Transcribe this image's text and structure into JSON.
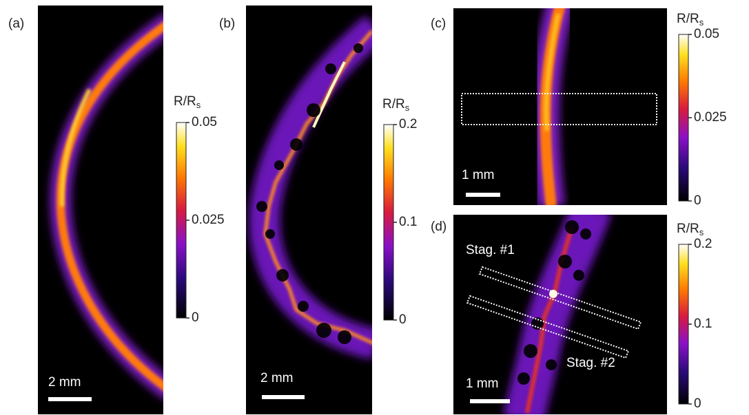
{
  "panels": [
    {
      "label": "(a)",
      "scale_bar": "2 mm",
      "colorbar": {
        "title": {
          "main": "R/R",
          "sub": "s"
        },
        "lim": [
          0,
          0.05
        ],
        "ticks": [
          0,
          0.025,
          0.05
        ]
      }
    },
    {
      "label": "(b)",
      "scale_bar": "2 mm",
      "colorbar": {
        "title": {
          "main": "R/R",
          "sub": "s"
        },
        "lim": [
          0,
          0.2
        ],
        "ticks": [
          0,
          0.1,
          0.2
        ]
      }
    },
    {
      "label": "(c)",
      "scale_bar": "1 mm",
      "colorbar": {
        "title": {
          "main": "R/R",
          "sub": "s"
        },
        "lim": [
          0,
          0.05
        ],
        "ticks": [
          0,
          0.025,
          0.05
        ]
      }
    },
    {
      "label": "(d)",
      "scale_bar": "1 mm",
      "colorbar": {
        "title": {
          "main": "R/R",
          "sub": "s"
        },
        "lim": [
          0,
          0.2
        ],
        "ticks": [
          0,
          0.1,
          0.2
        ]
      },
      "annotations": [
        "Stag. #1",
        "Stag. #2"
      ]
    }
  ]
}
